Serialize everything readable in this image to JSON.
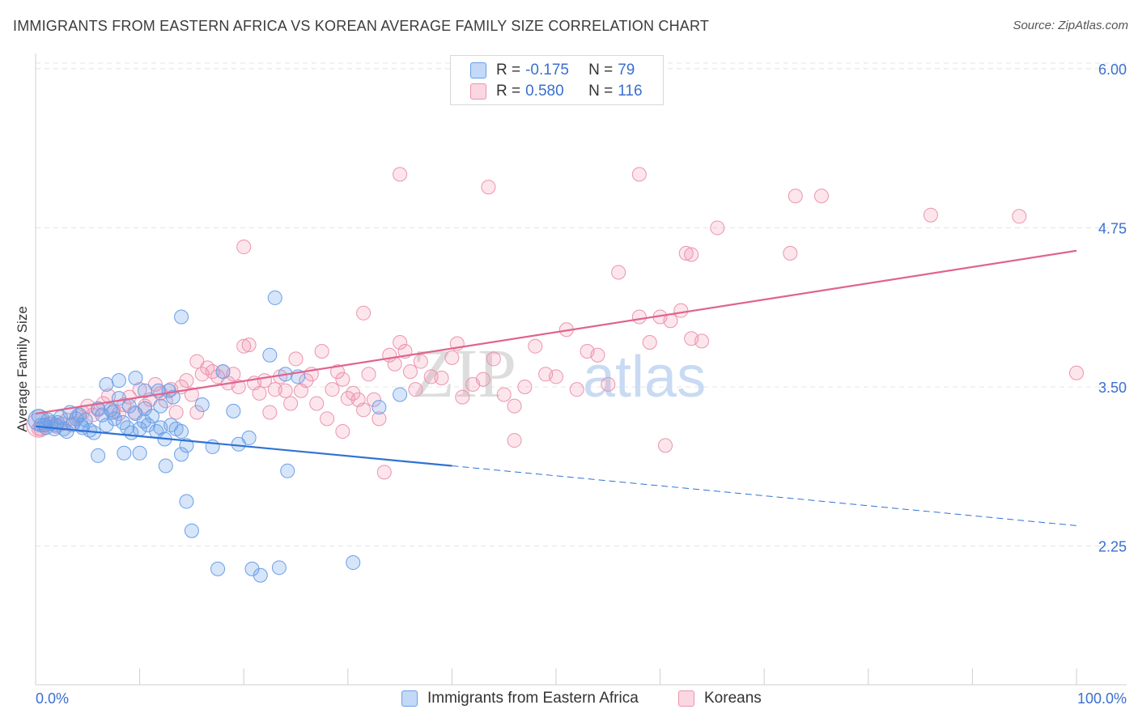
{
  "header": {
    "title": "IMMIGRANTS FROM EASTERN AFRICA VS KOREAN AVERAGE FAMILY SIZE CORRELATION CHART",
    "source": "Source: ZipAtlas.com"
  },
  "watermark": {
    "zip": "ZIP",
    "atlas": "atlas"
  },
  "legend_top": {
    "rows": [
      {
        "r_label": "R =",
        "r_value": "-0.175",
        "n_label": "N =",
        "n_value": "79"
      },
      {
        "r_label": "R =",
        "r_value": "0.580",
        "n_label": "N =",
        "n_value": "116"
      }
    ]
  },
  "legend_bottom": {
    "items": [
      "Immigrants from Eastern Africa",
      "Koreans"
    ]
  },
  "chart_data": {
    "type": "scatter",
    "ylabel": "Average Family Size",
    "xlabel": "",
    "x_tick_labels": [
      "0.0%",
      "100.0%"
    ],
    "y_tick_labels": [
      "6.00",
      "4.75",
      "3.50",
      "2.25"
    ],
    "y_ticks": [
      6.0,
      4.75,
      3.5,
      2.25
    ],
    "xlim": [
      0,
      100
    ],
    "ylim": [
      1.16,
      6.12
    ],
    "grid": true,
    "colors": {
      "blue_fill": "rgba(106,160,235,0.28)",
      "blue_stroke": "#6a9fe8",
      "blue_line": "#2f72d4",
      "pink_fill": "rgba(240,140,170,0.22)",
      "pink_stroke": "#ec93b0",
      "pink_line": "#e0648e",
      "tick_label": "#3a6fd0",
      "grid": "#e4e4e4"
    },
    "series": [
      {
        "name": "Immigrants from Eastern Africa",
        "trend": {
          "x0": 0,
          "y0": 3.19,
          "x1": 40,
          "y1": 2.88,
          "x_dash_end": 100,
          "y_dash_end": 2.41
        },
        "points": [
          [
            0.3,
            3.27
          ],
          [
            0.8,
            3.2
          ],
          [
            1.2,
            3.24
          ],
          [
            1.5,
            3.21
          ],
          [
            1.8,
            3.17
          ],
          [
            2.1,
            3.22
          ],
          [
            2.4,
            3.26
          ],
          [
            2.7,
            3.17
          ],
          [
            3.0,
            3.15
          ],
          [
            3.3,
            3.3
          ],
          [
            3.6,
            3.21
          ],
          [
            3.9,
            3.25
          ],
          [
            4.2,
            3.28
          ],
          [
            4.5,
            3.18
          ],
          [
            4.8,
            3.24
          ],
          [
            5.2,
            3.16
          ],
          [
            5.6,
            3.14
          ],
          [
            6.0,
            3.33
          ],
          [
            6.4,
            3.28
          ],
          [
            6.8,
            3.2
          ],
          [
            7.2,
            3.32
          ],
          [
            7.6,
            3.25
          ],
          [
            8.0,
            3.41
          ],
          [
            8.4,
            3.22
          ],
          [
            8.8,
            3.18
          ],
          [
            9.2,
            3.14
          ],
          [
            9.6,
            3.29
          ],
          [
            10.0,
            3.17
          ],
          [
            10.4,
            3.23
          ],
          [
            10.8,
            3.2
          ],
          [
            11.2,
            3.27
          ],
          [
            11.6,
            3.15
          ],
          [
            12.0,
            3.18
          ],
          [
            12.4,
            3.09
          ],
          [
            1.0,
            3.18
          ],
          [
            2.0,
            3.2
          ],
          [
            4.4,
            3.2
          ],
          [
            7.4,
            3.3
          ],
          [
            9.0,
            3.35
          ],
          [
            10.5,
            3.33
          ],
          [
            12.0,
            3.35
          ],
          [
            13.0,
            3.2
          ],
          [
            13.5,
            3.17
          ],
          [
            14.0,
            3.15
          ],
          [
            6.8,
            3.52
          ],
          [
            8.0,
            3.55
          ],
          [
            9.6,
            3.57
          ],
          [
            10.5,
            3.47
          ],
          [
            11.8,
            3.47
          ],
          [
            12.8,
            3.47
          ],
          [
            13.2,
            3.42
          ],
          [
            16.0,
            3.36
          ],
          [
            18.0,
            3.62
          ],
          [
            19.0,
            3.31
          ],
          [
            20.5,
            3.1
          ],
          [
            19.5,
            3.05
          ],
          [
            17.0,
            3.03
          ],
          [
            14.5,
            3.04
          ],
          [
            14.0,
            2.97
          ],
          [
            12.5,
            2.88
          ],
          [
            8.5,
            2.98
          ],
          [
            6.0,
            2.96
          ],
          [
            10.0,
            2.98
          ],
          [
            14.0,
            4.05
          ],
          [
            23.0,
            4.2
          ],
          [
            24.0,
            3.6
          ],
          [
            25.2,
            3.58
          ],
          [
            22.5,
            3.75
          ],
          [
            35.0,
            3.44
          ],
          [
            33.0,
            3.34
          ],
          [
            14.5,
            2.6
          ],
          [
            15.0,
            2.37
          ],
          [
            24.2,
            2.84
          ],
          [
            17.5,
            2.07
          ],
          [
            20.8,
            2.07
          ],
          [
            21.6,
            2.02
          ],
          [
            23.4,
            2.08
          ],
          [
            30.5,
            2.12
          ],
          [
            0.5,
            3.2
          ]
        ]
      },
      {
        "name": "Koreans",
        "trend": {
          "x0": 0,
          "y0": 3.29,
          "x1": 100,
          "y1": 4.57
        },
        "points": [
          [
            0.5,
            3.17
          ],
          [
            1.0,
            3.2
          ],
          [
            1.5,
            3.22
          ],
          [
            2.0,
            3.19
          ],
          [
            2.5,
            3.21
          ],
          [
            3.0,
            3.24
          ],
          [
            3.5,
            3.2
          ],
          [
            4.0,
            3.27
          ],
          [
            4.5,
            3.3
          ],
          [
            5.0,
            3.35
          ],
          [
            5.5,
            3.28
          ],
          [
            6.0,
            3.32
          ],
          [
            6.5,
            3.37
          ],
          [
            7.0,
            3.43
          ],
          [
            7.5,
            3.31
          ],
          [
            8.0,
            3.29
          ],
          [
            8.5,
            3.36
          ],
          [
            9.0,
            3.42
          ],
          [
            9.5,
            3.3
          ],
          [
            10.0,
            3.48
          ],
          [
            10.5,
            3.35
          ],
          [
            11.0,
            3.4
          ],
          [
            11.5,
            3.52
          ],
          [
            12.0,
            3.45
          ],
          [
            12.5,
            3.39
          ],
          [
            13.0,
            3.48
          ],
          [
            13.5,
            3.3
          ],
          [
            14.0,
            3.5
          ],
          [
            14.5,
            3.55
          ],
          [
            15.0,
            3.44
          ],
          [
            15.5,
            3.7
          ],
          [
            16.0,
            3.6
          ],
          [
            16.5,
            3.65
          ],
          [
            17.0,
            3.62
          ],
          [
            17.5,
            3.58
          ],
          [
            18.0,
            3.62
          ],
          [
            18.5,
            3.53
          ],
          [
            19.0,
            3.6
          ],
          [
            19.5,
            3.5
          ],
          [
            20.0,
            3.82
          ],
          [
            20.5,
            3.83
          ],
          [
            21.0,
            3.53
          ],
          [
            21.5,
            3.45
          ],
          [
            22.0,
            3.55
          ],
          [
            22.5,
            3.3
          ],
          [
            23.0,
            3.48
          ],
          [
            23.5,
            3.58
          ],
          [
            24.0,
            3.47
          ],
          [
            24.5,
            3.37
          ],
          [
            25.0,
            3.72
          ],
          [
            25.5,
            3.47
          ],
          [
            26.0,
            3.55
          ],
          [
            26.5,
            3.6
          ],
          [
            27.0,
            3.37
          ],
          [
            27.5,
            3.78
          ],
          [
            28.0,
            3.25
          ],
          [
            28.5,
            3.48
          ],
          [
            29.0,
            3.62
          ],
          [
            29.5,
            3.56
          ],
          [
            30.0,
            3.41
          ],
          [
            30.5,
            3.45
          ],
          [
            31.0,
            3.4
          ],
          [
            31.5,
            3.32
          ],
          [
            32.0,
            3.6
          ],
          [
            32.5,
            3.4
          ],
          [
            33.0,
            3.25
          ],
          [
            34.0,
            3.75
          ],
          [
            34.5,
            3.68
          ],
          [
            35.0,
            3.85
          ],
          [
            35.5,
            3.78
          ],
          [
            36.0,
            3.62
          ],
          [
            36.5,
            3.48
          ],
          [
            37.0,
            3.7
          ],
          [
            38.0,
            3.58
          ],
          [
            39.0,
            3.57
          ],
          [
            40.0,
            3.73
          ],
          [
            40.5,
            3.84
          ],
          [
            41.0,
            3.42
          ],
          [
            42.0,
            3.52
          ],
          [
            43.0,
            3.56
          ],
          [
            44.0,
            3.72
          ],
          [
            45.0,
            3.44
          ],
          [
            46.0,
            3.35
          ],
          [
            47.0,
            3.5
          ],
          [
            48.0,
            3.82
          ],
          [
            49.0,
            3.6
          ],
          [
            50.0,
            3.58
          ],
          [
            51.0,
            3.95
          ],
          [
            52.0,
            3.48
          ],
          [
            53.0,
            3.78
          ],
          [
            54.0,
            3.75
          ],
          [
            55.0,
            3.52
          ],
          [
            56.0,
            4.4
          ],
          [
            58.0,
            4.05
          ],
          [
            59.0,
            3.85
          ],
          [
            60.0,
            4.05
          ],
          [
            61.0,
            4.02
          ],
          [
            62.0,
            4.1
          ],
          [
            63.0,
            3.88
          ],
          [
            64.0,
            3.86
          ],
          [
            35.0,
            5.17
          ],
          [
            43.5,
            5.07
          ],
          [
            58.0,
            5.17
          ],
          [
            73.0,
            5.0
          ],
          [
            75.5,
            5.0
          ],
          [
            86.0,
            4.85
          ],
          [
            94.5,
            4.84
          ],
          [
            65.5,
            4.75
          ],
          [
            62.5,
            4.55
          ],
          [
            72.5,
            4.55
          ],
          [
            31.5,
            4.08
          ],
          [
            20.0,
            4.6
          ],
          [
            29.5,
            3.15
          ],
          [
            33.5,
            2.83
          ],
          [
            46.0,
            3.08
          ],
          [
            60.5,
            3.04
          ],
          [
            100.0,
            3.61
          ],
          [
            63.0,
            4.54
          ],
          [
            15.5,
            3.3
          ],
          [
            0.3,
            3.17
          ]
        ]
      }
    ]
  }
}
